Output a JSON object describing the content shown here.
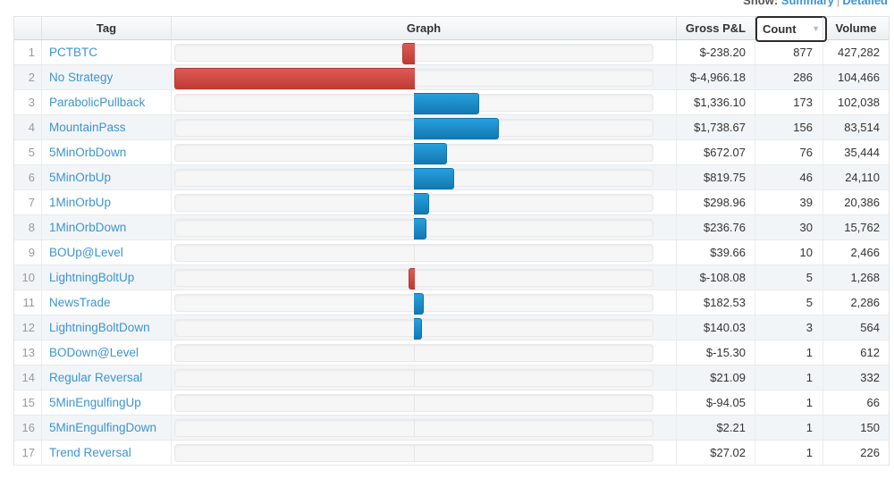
{
  "view_toggle": {
    "label": "Show:",
    "summary_link": "Summary",
    "divider": "|",
    "detailed_link": "Detailed"
  },
  "table": {
    "headers": {
      "num": "",
      "tag": "Tag",
      "graph": "Graph",
      "pnl": "Gross P&L",
      "count": "Count",
      "volume": "Volume"
    },
    "sort": {
      "column": "Count",
      "direction": "desc",
      "indicator": "▼"
    },
    "rows": [
      {
        "num": "1",
        "tag": "PCTBTC",
        "pnl": -238.2,
        "pnl_text": "$-238.20",
        "count": "877",
        "volume": "427,282"
      },
      {
        "num": "2",
        "tag": "No Strategy",
        "pnl": -4966.18,
        "pnl_text": "$-4,966.18",
        "count": "286",
        "volume": "104,466"
      },
      {
        "num": "3",
        "tag": "ParabolicPullback",
        "pnl": 1336.1,
        "pnl_text": "$1,336.10",
        "count": "173",
        "volume": "102,038"
      },
      {
        "num": "4",
        "tag": "MountainPass",
        "pnl": 1738.67,
        "pnl_text": "$1,738.67",
        "count": "156",
        "volume": "83,514"
      },
      {
        "num": "5",
        "tag": "5MinOrbDown",
        "pnl": 672.07,
        "pnl_text": "$672.07",
        "count": "76",
        "volume": "35,444"
      },
      {
        "num": "6",
        "tag": "5MinOrbUp",
        "pnl": 819.75,
        "pnl_text": "$819.75",
        "count": "46",
        "volume": "24,110"
      },
      {
        "num": "7",
        "tag": "1MinOrbUp",
        "pnl": 298.96,
        "pnl_text": "$298.96",
        "count": "39",
        "volume": "20,386"
      },
      {
        "num": "8",
        "tag": "1MinOrbDown",
        "pnl": 236.76,
        "pnl_text": "$236.76",
        "count": "30",
        "volume": "15,762"
      },
      {
        "num": "9",
        "tag": "BOUp@Level",
        "pnl": 39.66,
        "pnl_text": "$39.66",
        "count": "10",
        "volume": "2,466"
      },
      {
        "num": "10",
        "tag": "LightningBoltUp",
        "pnl": -108.08,
        "pnl_text": "$-108.08",
        "count": "5",
        "volume": "1,268"
      },
      {
        "num": "11",
        "tag": "NewsTrade",
        "pnl": 182.53,
        "pnl_text": "$182.53",
        "count": "5",
        "volume": "2,286"
      },
      {
        "num": "12",
        "tag": "LightningBoltDown",
        "pnl": 140.03,
        "pnl_text": "$140.03",
        "count": "3",
        "volume": "564"
      },
      {
        "num": "13",
        "tag": "BODown@Level",
        "pnl": -15.3,
        "pnl_text": "$-15.30",
        "count": "1",
        "volume": "612"
      },
      {
        "num": "14",
        "tag": "Regular Reversal",
        "pnl": 21.09,
        "pnl_text": "$21.09",
        "count": "1",
        "volume": "332"
      },
      {
        "num": "15",
        "tag": "5MinEngulfingUp",
        "pnl": -94.05,
        "pnl_text": "$-94.05",
        "count": "1",
        "volume": "66"
      },
      {
        "num": "16",
        "tag": "5MinEngulfingDown",
        "pnl": 2.21,
        "pnl_text": "$2.21",
        "count": "1",
        "volume": "150"
      },
      {
        "num": "17",
        "tag": "Trend Reversal",
        "pnl": 27.02,
        "pnl_text": "$27.02",
        "count": "1",
        "volume": "226"
      }
    ]
  },
  "chart_data": {
    "type": "bar",
    "orientation": "horizontal",
    "title": "Graph",
    "categories": [
      "PCTBTC",
      "No Strategy",
      "ParabolicPullback",
      "MountainPass",
      "5MinOrbDown",
      "5MinOrbUp",
      "1MinOrbUp",
      "1MinOrbDown",
      "BOUp@Level",
      "LightningBoltUp",
      "NewsTrade",
      "LightningBoltDown",
      "BODown@Level",
      "Regular Reversal",
      "5MinEngulfingUp",
      "5MinEngulfingDown",
      "Trend Reversal"
    ],
    "values": [
      -238.2,
      -4966.18,
      1336.1,
      1738.67,
      672.07,
      819.75,
      298.96,
      236.76,
      39.66,
      -108.08,
      182.53,
      140.03,
      -15.3,
      21.09,
      -94.05,
      2.21,
      27.02
    ],
    "xlabel": "Gross P&L ($)",
    "xlim": [
      -4966.18,
      4966.18
    ],
    "positive_color": "#1e97d5",
    "negative_color": "#d9534f"
  },
  "colors": {
    "link_blue": "#3d94d0",
    "bar_positive_top": "#26a0df",
    "bar_positive_bottom": "#1478b0",
    "bar_negative_top": "#dc5a55",
    "bar_negative_bottom": "#c13b36",
    "header_border_bottom": "#c9d9e6",
    "even_row_bg": "#f2f5f7"
  }
}
